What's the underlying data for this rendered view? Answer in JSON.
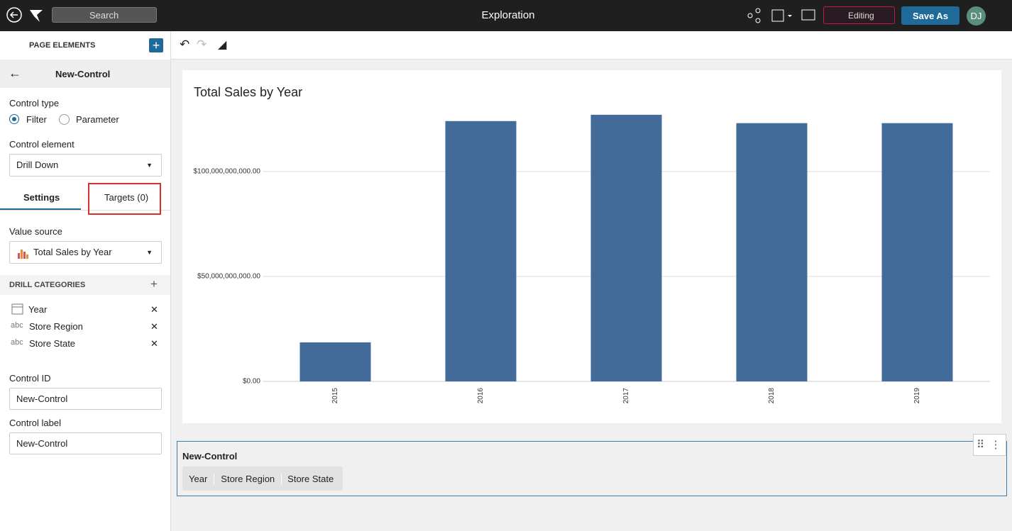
{
  "top_bar": {
    "search": "Search",
    "title": "Exploration",
    "mode": "Editing",
    "save": "Save As",
    "avatar": "DJ"
  },
  "sidebar": {
    "header": "PAGE ELEMENTS",
    "element": "New-Control",
    "control_type_label": "Control type",
    "control_types": [
      "Filter",
      "Parameter"
    ],
    "control_element_label": "Control element",
    "control_element": "Drill Down",
    "tabs": [
      "Settings",
      "Targets (0)"
    ],
    "value_source_label": "Value source",
    "value_source": "Total Sales by Year",
    "drill_header": "DRILL CATEGORIES",
    "drill_categories": [
      {
        "label": "Year"
      },
      {
        "icon": "abc",
        "label": "Store Region"
      },
      {
        "icon": "abc",
        "label": "Store State"
      }
    ],
    "control_id_label": "Control ID",
    "control_id": "New-Control",
    "control_label_label": "Control label",
    "control_label": "New-Control"
  },
  "control": {
    "title": "New-Control",
    "options": [
      "Year",
      "Store Region",
      "Store State"
    ]
  },
  "chart_data": {
    "type": "bar",
    "title": "Total Sales by Year",
    "categories": [
      "2015",
      "2016",
      "2017",
      "2018",
      "2019"
    ],
    "values": [
      18600000000,
      124000000000,
      127000000000,
      123000000000,
      123000000000
    ],
    "color": "#436b9a",
    "ylim": [
      0,
      130000000000
    ],
    "yticks": [
      {
        "value": 0,
        "label": "$0.00"
      },
      {
        "value": 50000000000,
        "label": "$50,000,000,000.00"
      },
      {
        "value": 100000000000,
        "label": "$100,000,000,000.00"
      }
    ],
    "grid": true
  }
}
